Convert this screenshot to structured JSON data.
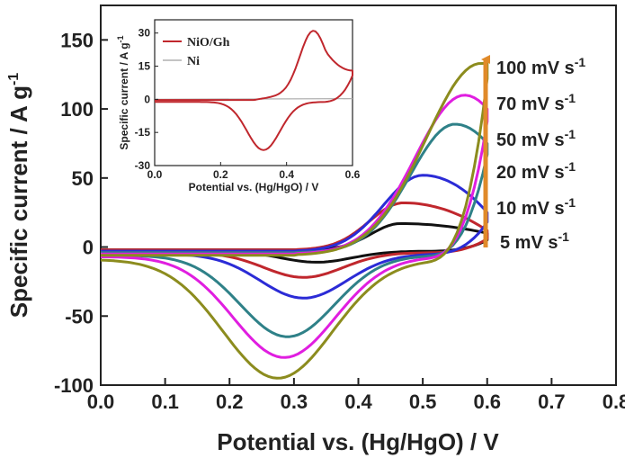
{
  "chart_data": [
    {
      "type": "line",
      "xlabel": "Potential vs. (Hg/HgO) / V",
      "ylabel_main": "Specific current / A g",
      "ylabel_sup": "-1",
      "xlim": [
        0.0,
        0.8
      ],
      "ylim": [
        -100,
        175
      ],
      "xticks": [
        "0.0",
        "0.1",
        "0.2",
        "0.3",
        "0.4",
        "0.5",
        "0.6",
        "0.7",
        "0.8"
      ],
      "yticks": [
        "-100",
        "-50",
        "0",
        "50",
        "100",
        "150"
      ],
      "rate_labels": [
        {
          "text": "100 mV s",
          "sup": "-1"
        },
        {
          "text": "70 mV s",
          "sup": "-1"
        },
        {
          "text": "50 mV s",
          "sup": "-1"
        },
        {
          "text": "20 mV s",
          "sup": "-1"
        },
        {
          "text": "10 mV s",
          "sup": "-1"
        },
        {
          "text": "5 mV s",
          "sup": "-1"
        }
      ],
      "arrow_color": "#e08a2a",
      "series": [
        {
          "rate": "5 mV s-1",
          "color": "#111111",
          "anodic_peak": [
            0.465,
            17
          ],
          "cathodic_peak": [
            0.335,
            -11
          ],
          "upper_start": -2,
          "lower_start": -3,
          "vertex": [
            0.6,
            10
          ]
        },
        {
          "rate": "10 mV s-1",
          "color": "#c0272d",
          "anodic_peak": [
            0.47,
            32
          ],
          "cathodic_peak": [
            0.315,
            -22
          ],
          "upper_start": -2,
          "lower_start": -4,
          "vertex": [
            0.6,
            12
          ]
        },
        {
          "rate": "20 mV s-1",
          "color": "#2b2bd6",
          "anodic_peak": [
            0.5,
            52
          ],
          "cathodic_peak": [
            0.315,
            -37
          ],
          "upper_start": -3,
          "lower_start": -5,
          "vertex": [
            0.6,
            25
          ]
        },
        {
          "rate": "50 mV s-1",
          "color": "#2f8188",
          "anodic_peak": [
            0.55,
            89
          ],
          "cathodic_peak": [
            0.29,
            -65
          ],
          "upper_start": -4,
          "lower_start": -6,
          "vertex": [
            0.6,
            75
          ]
        },
        {
          "rate": "70 mV s-1",
          "color": "#e01ee0",
          "anodic_peak": [
            0.565,
            110
          ],
          "cathodic_peak": [
            0.285,
            -80
          ],
          "upper_start": -5,
          "lower_start": -7,
          "vertex": [
            0.6,
            100
          ]
        },
        {
          "rate": "100 mV s-1",
          "color": "#8c8c1e",
          "anodic_peak": [
            0.59,
            133
          ],
          "cathodic_peak": [
            0.275,
            -95
          ],
          "upper_start": -6,
          "lower_start": -9,
          "vertex": [
            0.6,
            133
          ]
        }
      ]
    },
    {
      "type": "line",
      "xlabel": "Potential vs. (Hg/HgO) / V",
      "ylabel_main": "Specific current / A g",
      "ylabel_sup": "-1",
      "xlim": [
        0.0,
        0.6
      ],
      "ylim": [
        -30,
        36
      ],
      "xticks": [
        "0.0",
        "0.2",
        "0.4",
        "0.6"
      ],
      "yticks": [
        "-30",
        "-15",
        "0",
        "15",
        "30"
      ],
      "series": [
        {
          "name": "NiO/Gh",
          "color": "#c0272d",
          "anodic_peak": [
            0.48,
            32
          ],
          "cathodic_peak": [
            0.33,
            -23
          ],
          "vertex": [
            0.6,
            13
          ]
        },
        {
          "name": "Ni",
          "color": "#b0b0b0"
        }
      ]
    }
  ]
}
